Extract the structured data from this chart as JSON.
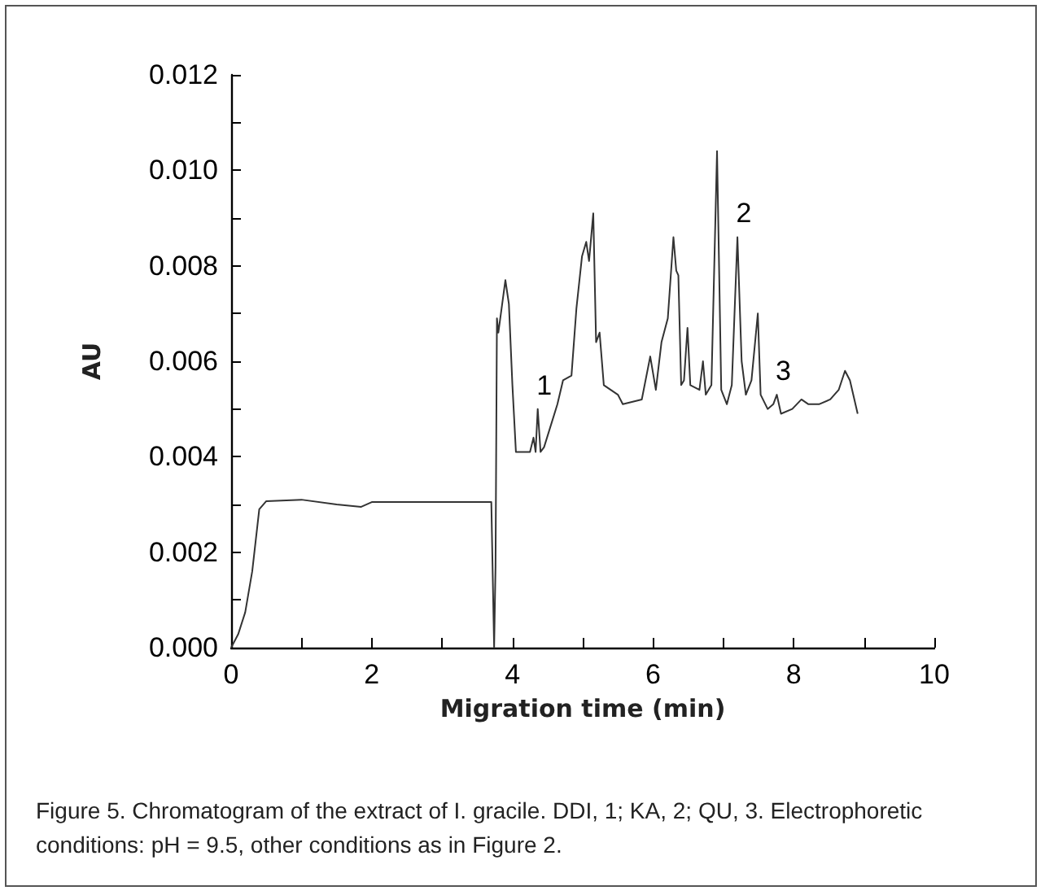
{
  "chart_data": {
    "type": "line",
    "xlabel": "Migration time (min)",
    "ylabel": "AU",
    "x": [
      0,
      0.1,
      0.2,
      0.3,
      0.4,
      0.5,
      1.0,
      1.5,
      1.85,
      2.0,
      2.5,
      3.0,
      3.7,
      3.74,
      3.76,
      3.78,
      3.8,
      3.9,
      3.95,
      4.0,
      4.05,
      4.15,
      4.25,
      4.3,
      4.33,
      4.36,
      4.4,
      4.45,
      4.64,
      4.72,
      4.84,
      4.91,
      4.99,
      5.05,
      5.09,
      5.15,
      5.19,
      5.24,
      5.3,
      5.5,
      5.57,
      5.84,
      5.96,
      6.04,
      6.12,
      6.21,
      6.29,
      6.33,
      6.36,
      6.4,
      6.44,
      6.49,
      6.53,
      6.66,
      6.71,
      6.75,
      6.83,
      6.91,
      6.97,
      7.05,
      7.12,
      7.2,
      7.26,
      7.32,
      7.4,
      7.49,
      7.53,
      7.63,
      7.71,
      7.76,
      7.82,
      7.98,
      8.11,
      8.21,
      8.36,
      8.52,
      8.64,
      8.73,
      8.8,
      8.91
    ],
    "series": [
      {
        "color": "#333333",
        "values": [
          0,
          0.00028,
          0.00074,
          0.0016,
          0.0029,
          0.00307,
          0.0031,
          0.003,
          0.00295,
          0.00305,
          0.00305,
          0.00305,
          0.00305,
          0,
          0.0017,
          0.0069,
          0.0066,
          0.0077,
          0.0072,
          0.0055,
          0.0041,
          0.0041,
          0.0041,
          0.0044,
          0.0041,
          0.005,
          0.0041,
          0.0042,
          0.0051,
          0.0056,
          0.0057,
          0.0071,
          0.0082,
          0.0085,
          0.0081,
          0.0091,
          0.0064,
          0.0066,
          0.0055,
          0.0053,
          0.0051,
          0.0052,
          0.0061,
          0.0054,
          0.0064,
          0.0069,
          0.0086,
          0.0079,
          0.0078,
          0.0055,
          0.0056,
          0.0067,
          0.0055,
          0.0054,
          0.006,
          0.0053,
          0.0055,
          0.0104,
          0.0054,
          0.0051,
          0.0055,
          0.0086,
          0.006,
          0.0053,
          0.0056,
          0.007,
          0.0053,
          0.005,
          0.0051,
          0.0053,
          0.0049,
          0.005,
          0.0052,
          0.0051,
          0.0051,
          0.0052,
          0.0054,
          0.0058,
          0.0056,
          0.0049
        ]
      }
    ],
    "xlim": [
      0,
      10
    ],
    "xticks": [
      0,
      2,
      4,
      6,
      8,
      10
    ],
    "ylim": [
      0,
      0.012
    ],
    "yticks": [
      {
        "value": 0,
        "label": "0.000"
      },
      {
        "value": 0.002,
        "label": "0.002"
      },
      {
        "value": 0.004,
        "label": "0.004"
      },
      {
        "value": 0.006,
        "label": "0.006"
      },
      {
        "value": 0.008,
        "label": "0.008"
      },
      {
        "value": 0.01,
        "label": "0.010"
      },
      {
        "value": 0.012,
        "label": "0.012"
      }
    ],
    "grid": false,
    "marker": "none",
    "line_style": "solid",
    "annotations": [
      {
        "text": "1",
        "x": 4.36,
        "y": 0.005
      },
      {
        "text": "2",
        "x": 7.2,
        "y": 0.0086
      },
      {
        "text": "3",
        "x": 7.76,
        "y": 0.0053
      },
      "Figure 5. Chromatogram of the extract of I. gracile. DDI, 1; KA, 2; QU, 3. Electrophoretic conditions: pH = 9.5, other conditions as in Figure 2."
    ]
  }
}
